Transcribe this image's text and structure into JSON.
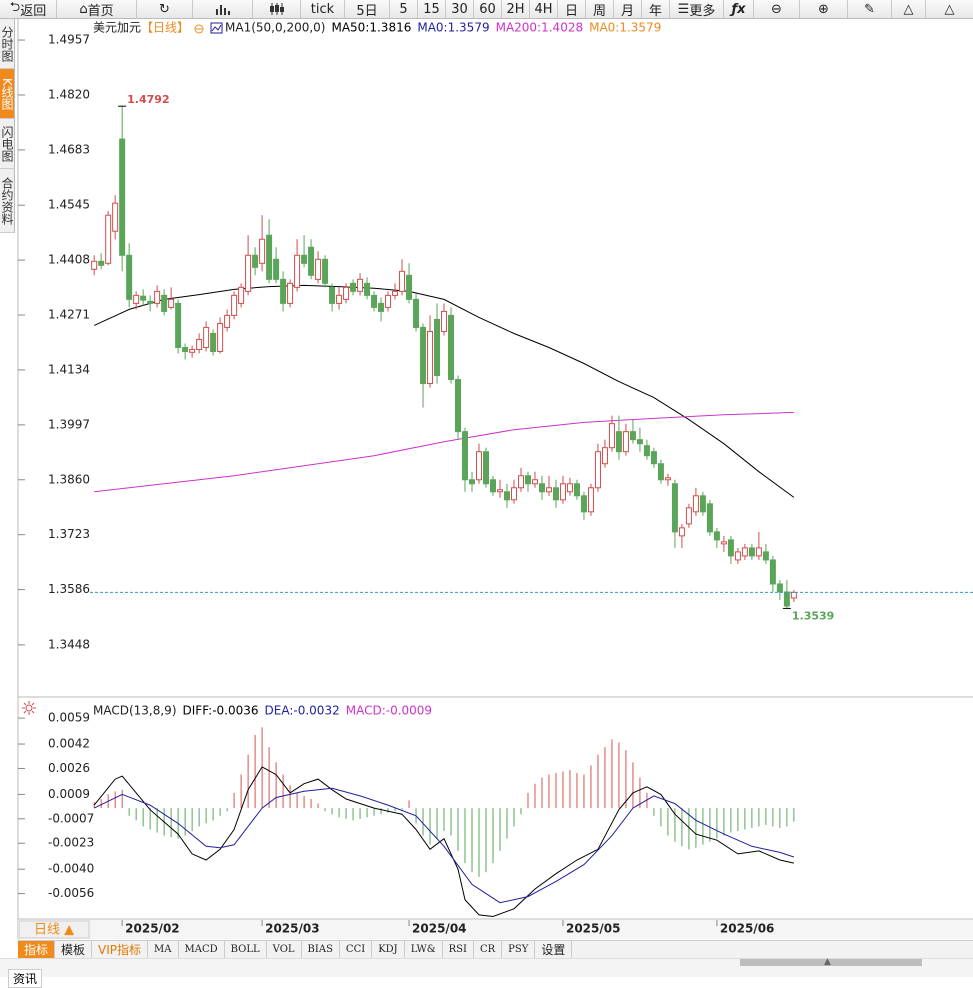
{
  "toolbar": [
    "返回",
    "首页",
    "tick",
    "5日",
    "5",
    "15",
    "30",
    "60",
    "2H",
    "4H",
    "日",
    "周",
    "月",
    "年",
    "更多"
  ],
  "side_tabs": [
    "分时图",
    "K线图",
    "闪电图",
    "合约资料"
  ],
  "period_button": "日线 ▲",
  "bottom_tabs": [
    "指标",
    "模板",
    "VIP指标",
    "MA",
    "MACD",
    "BOLL",
    "VOL",
    "BIAS",
    "CCI",
    "KDJ",
    "LW&",
    "RSI",
    "CR",
    "PSY",
    "设置"
  ],
  "footer_tab": "资讯",
  "chart_data": [
    {
      "type": "candlestick",
      "title": "美元加元",
      "period": "【日线】",
      "indicator": "MA1(50,0,200,0)",
      "legend": [
        {
          "label": "MA50:1.3816",
          "color": "#000000"
        },
        {
          "label": "MA0:1.3579",
          "color": "#1f1fa0"
        },
        {
          "label": "MA200:1.4028",
          "color": "#cc33cc"
        },
        {
          "label": "MA0:1.3579",
          "color": "#f08a1c"
        }
      ],
      "up_color": "#d24d4d",
      "down_color": "#5aa55a",
      "last_line_color": "#3399cc",
      "xlim": [
        -10.6,
        125.6
      ],
      "ylim": [
        1.3323,
        1.5012
      ],
      "yticks": [
        1.4957,
        {
          "value": 1.482,
          "label": "1.4820"
        },
        1.4683,
        1.4545,
        1.4408,
        1.4271,
        1.4134,
        1.3997,
        {
          "value": 1.386,
          "label": "1.3860"
        },
        1.3723,
        1.3586,
        1.3448
      ],
      "ohlc": [
        [
          1.4385,
          1.442,
          1.437,
          1.4405
        ],
        [
          1.4405,
          1.4425,
          1.4385,
          1.4395
        ],
        [
          1.44,
          1.453,
          1.4395,
          1.452
        ],
        [
          1.448,
          1.457,
          1.446,
          1.455
        ],
        [
          1.471,
          1.4792,
          1.438,
          1.442
        ],
        [
          1.442,
          1.445,
          1.429,
          1.431
        ],
        [
          1.43,
          1.433,
          1.4285,
          1.432
        ],
        [
          1.4318,
          1.4335,
          1.4295,
          1.4308
        ],
        [
          1.4305,
          1.432,
          1.428,
          1.43
        ],
        [
          1.43,
          1.4345,
          1.429,
          1.433
        ],
        [
          1.432,
          1.4335,
          1.427,
          1.428
        ],
        [
          1.429,
          1.434,
          1.4285,
          1.431
        ],
        [
          1.43,
          1.431,
          1.4175,
          1.419
        ],
        [
          1.419,
          1.42,
          1.416,
          1.418
        ],
        [
          1.4178,
          1.4195,
          1.4165,
          1.4185
        ],
        [
          1.4185,
          1.4225,
          1.4175,
          1.421
        ],
        [
          1.419,
          1.4255,
          1.418,
          1.424
        ],
        [
          1.4225,
          1.4235,
          1.417,
          1.418
        ],
        [
          1.418,
          1.4265,
          1.4175,
          1.425
        ],
        [
          1.424,
          1.4285,
          1.423,
          1.427
        ],
        [
          1.427,
          1.433,
          1.426,
          1.432
        ],
        [
          1.43,
          1.435,
          1.429,
          1.434
        ],
        [
          1.433,
          1.447,
          1.432,
          1.442
        ],
        [
          1.442,
          1.444,
          1.437,
          1.439
        ],
        [
          1.44,
          1.452,
          1.438,
          1.446
        ],
        [
          1.447,
          1.451,
          1.435,
          1.436
        ],
        [
          1.441,
          1.444,
          1.435,
          1.436
        ],
        [
          1.436,
          1.438,
          1.428,
          1.43
        ],
        [
          1.43,
          1.436,
          1.429,
          1.435
        ],
        [
          1.434,
          1.446,
          1.433,
          1.442
        ],
        [
          1.442,
          1.447,
          1.439,
          1.44
        ],
        [
          1.444,
          1.446,
          1.436,
          1.437
        ],
        [
          1.436,
          1.443,
          1.435,
          1.441
        ],
        [
          1.441,
          1.442,
          1.434,
          1.435
        ],
        [
          1.434,
          1.435,
          1.428,
          1.43
        ],
        [
          1.43,
          1.434,
          1.4285,
          1.432
        ],
        [
          1.431,
          1.435,
          1.43,
          1.434
        ],
        [
          1.435,
          1.436,
          1.432,
          1.433
        ],
        [
          1.433,
          1.4375,
          1.432,
          1.436
        ],
        [
          1.435,
          1.4365,
          1.431,
          1.432
        ],
        [
          1.432,
          1.433,
          1.428,
          1.429
        ],
        [
          1.43,
          1.4315,
          1.4255,
          1.428
        ],
        [
          1.429,
          1.433,
          1.428,
          1.432
        ],
        [
          1.432,
          1.435,
          1.431,
          1.433
        ],
        [
          1.433,
          1.441,
          1.432,
          1.438
        ],
        [
          1.437,
          1.44,
          1.43,
          1.431
        ],
        [
          1.431,
          1.4325,
          1.423,
          1.424
        ],
        [
          1.424,
          1.425,
          1.404,
          1.41
        ],
        [
          1.41,
          1.427,
          1.409,
          1.423
        ],
        [
          1.426,
          1.43,
          1.41,
          1.412
        ],
        [
          1.423,
          1.43,
          1.422,
          1.428
        ],
        [
          1.427,
          1.429,
          1.41,
          1.411
        ],
        [
          1.411,
          1.412,
          1.396,
          1.398
        ],
        [
          1.398,
          1.399,
          1.383,
          1.386
        ],
        [
          1.386,
          1.388,
          1.383,
          1.385
        ],
        [
          1.386,
          1.395,
          1.385,
          1.393
        ],
        [
          1.393,
          1.394,
          1.384,
          1.385
        ],
        [
          1.386,
          1.387,
          1.382,
          1.383
        ],
        [
          1.383,
          1.386,
          1.3815,
          1.3835
        ],
        [
          1.383,
          1.385,
          1.379,
          1.381
        ],
        [
          1.381,
          1.386,
          1.38,
          1.384
        ],
        [
          1.384,
          1.389,
          1.383,
          1.387
        ],
        [
          1.387,
          1.388,
          1.383,
          1.385
        ],
        [
          1.385,
          1.388,
          1.384,
          1.386
        ],
        [
          1.385,
          1.387,
          1.381,
          1.383
        ],
        [
          1.383,
          1.387,
          1.382,
          1.384
        ],
        [
          1.384,
          1.386,
          1.379,
          1.381
        ],
        [
          1.381,
          1.387,
          1.38,
          1.385
        ],
        [
          1.383,
          1.3865,
          1.382,
          1.385
        ],
        [
          1.385,
          1.386,
          1.381,
          1.382
        ],
        [
          1.382,
          1.383,
          1.376,
          1.378
        ],
        [
          1.378,
          1.385,
          1.377,
          1.384
        ],
        [
          1.384,
          1.395,
          1.383,
          1.393
        ],
        [
          1.39,
          1.396,
          1.389,
          1.394
        ],
        [
          1.394,
          1.402,
          1.393,
          1.4
        ],
        [
          1.398,
          1.402,
          1.391,
          1.393
        ],
        [
          1.393,
          1.4,
          1.392,
          1.398
        ],
        [
          1.398,
          1.401,
          1.395,
          1.396
        ],
        [
          1.396,
          1.399,
          1.393,
          1.395
        ],
        [
          1.3945,
          1.396,
          1.391,
          1.392
        ],
        [
          1.393,
          1.394,
          1.389,
          1.39
        ],
        [
          1.39,
          1.391,
          1.385,
          1.386
        ],
        [
          1.386,
          1.3875,
          1.3845,
          1.3865
        ],
        [
          1.385,
          1.386,
          1.369,
          1.373
        ],
        [
          1.372,
          1.375,
          1.369,
          1.374
        ],
        [
          1.375,
          1.38,
          1.374,
          1.379
        ],
        [
          1.378,
          1.384,
          1.377,
          1.382
        ],
        [
          1.382,
          1.383,
          1.377,
          1.378
        ],
        [
          1.38,
          1.381,
          1.372,
          1.373
        ],
        [
          1.373,
          1.374,
          1.369,
          1.371
        ],
        [
          1.37,
          1.372,
          1.368,
          1.3705
        ],
        [
          1.371,
          1.372,
          1.365,
          1.367
        ],
        [
          1.366,
          1.369,
          1.365,
          1.368
        ],
        [
          1.367,
          1.37,
          1.366,
          1.369
        ],
        [
          1.369,
          1.37,
          1.366,
          1.367
        ],
        [
          1.367,
          1.373,
          1.366,
          1.369
        ],
        [
          1.368,
          1.37,
          1.365,
          1.366
        ],
        [
          1.366,
          1.367,
          1.358,
          1.36
        ],
        [
          1.36,
          1.361,
          1.356,
          1.358
        ],
        [
          1.358,
          1.361,
          1.3539,
          1.3545
        ],
        [
          1.3565,
          1.3585,
          1.3555,
          1.3579
        ]
      ],
      "series": [
        {
          "color": "#000000",
          "x": [
            0,
            5,
            10,
            15,
            20,
            25,
            30,
            35,
            40,
            45,
            50,
            55,
            60,
            65,
            70,
            75,
            80,
            85,
            90,
            95,
            100
          ],
          "values": [
            1.4245,
            1.4285,
            1.431,
            1.4322,
            1.4335,
            1.4342,
            1.4345,
            1.4342,
            1.4338,
            1.433,
            1.431,
            1.4265,
            1.4225,
            1.419,
            1.415,
            1.4105,
            1.4065,
            1.401,
            1.395,
            1.388,
            1.3816
          ]
        },
        {
          "color": "#cc33cc",
          "x": [
            0,
            10,
            20,
            30,
            40,
            50,
            60,
            70,
            80,
            90,
            100
          ],
          "values": [
            1.383,
            1.385,
            1.387,
            1.3895,
            1.392,
            1.3955,
            1.3985,
            1.4003,
            1.4013,
            1.4022,
            1.4028
          ]
        }
      ]
    },
    {
      "type": "macd",
      "title": "MACD(13,8,9)",
      "legend": [
        {
          "label": "DIFF:-0.0036",
          "color": "#000000"
        },
        {
          "label": "DEA:-0.0032",
          "color": "#1f1fa0"
        },
        {
          "label": "MACD:-0.0009",
          "color": "#cc33cc"
        }
      ],
      "xlim": [
        -10.6,
        125.6
      ],
      "ylim": [
        -0.0072,
        0.0063
      ],
      "yticks": [
        0.0059,
        0.0042,
        0.0026,
        0.0009,
        -0.0007,
        -0.0023,
        {
          "value": -0.004,
          "label": "-0.0040"
        },
        -0.0056
      ],
      "xticks": [
        {
          "value": 4,
          "label": "2025/02"
        },
        {
          "value": 24,
          "label": "2025/03"
        },
        {
          "value": 45,
          "label": "2025/04"
        },
        {
          "value": 67,
          "label": "2025/05"
        },
        {
          "value": 89,
          "label": "2025/06"
        }
      ],
      "up_color": "#d9534f",
      "down_color": "#5aa55a",
      "bars": [
        0.0004,
        0.0006,
        0.0009,
        0.0011,
        0.0012,
        -0.0005,
        -0.0008,
        -0.0012,
        -0.0014,
        -0.0016,
        -0.0018,
        -0.0019,
        -0.002,
        -0.0018,
        -0.0015,
        -0.0012,
        -0.001,
        -0.0008,
        -0.0005,
        -0.0002,
        0.001,
        0.0022,
        0.0035,
        0.0048,
        0.0053,
        0.004,
        0.003,
        0.0022,
        0.0015,
        0.001,
        0.0008,
        0.0006,
        0.0003,
        -0.0002,
        -0.0004,
        -0.0006,
        -0.0007,
        -0.0008,
        -0.0007,
        -0.0006,
        -0.0005,
        -0.0004,
        -0.0003,
        -0.0002,
        -0.0001,
        0.0005,
        -0.001,
        -0.0018,
        -0.0024,
        -0.002,
        -0.0015,
        -0.0018,
        -0.0028,
        -0.0036,
        -0.0042,
        -0.0045,
        -0.0042,
        -0.0036,
        -0.0028,
        -0.002,
        -0.0012,
        -0.0004,
        0.001,
        0.0016,
        0.002,
        0.0022,
        0.0023,
        0.0024,
        0.0025,
        0.0023,
        0.0022,
        0.0028,
        0.0035,
        0.004,
        0.0045,
        0.0043,
        0.0038,
        0.003,
        0.002,
        0.001,
        -0.0005,
        -0.0012,
        -0.0018,
        -0.0022,
        -0.0025,
        -0.0027,
        -0.0026,
        -0.0024,
        -0.0022,
        -0.002,
        -0.0018,
        -0.0016,
        -0.0015,
        -0.0014,
        -0.0013,
        -0.0012,
        -0.0011,
        -0.0012,
        -0.0013,
        -0.0012,
        -0.0009
      ],
      "series": [
        {
          "color": "#000000",
          "x": [
            0,
            3,
            4,
            8,
            12,
            14,
            16,
            18,
            20,
            22,
            24,
            26,
            28,
            30,
            32,
            34,
            36,
            40,
            44,
            46,
            48,
            50,
            52,
            53,
            55,
            57,
            60,
            63,
            66,
            69,
            72,
            75,
            77,
            79,
            81,
            83,
            86,
            89,
            92,
            95,
            98,
            100
          ],
          "values": [
            0.0002,
            0.0019,
            0.0021,
            -0.0001,
            -0.0017,
            -0.003,
            -0.0034,
            -0.0027,
            -0.0014,
            0.0012,
            0.0027,
            0.0022,
            0.001,
            0.0016,
            0.0019,
            0.0012,
            0.0006,
            0,
            -0.0004,
            -0.0014,
            -0.0027,
            -0.002,
            -0.004,
            -0.006,
            -0.007,
            -0.0071,
            -0.0066,
            -0.0053,
            -0.0043,
            -0.0034,
            -0.0027,
            -0.0001,
            0.001,
            0.0014,
            0.0009,
            -0.0004,
            -0.0017,
            -0.0021,
            -0.003,
            -0.0028,
            -0.0034,
            -0.0036
          ]
        },
        {
          "color": "#1f1fa0",
          "x": [
            0,
            4,
            8,
            12,
            16,
            18,
            20,
            22,
            24,
            26,
            30,
            34,
            38,
            42,
            46,
            50,
            54,
            58,
            62,
            66,
            70,
            74,
            77,
            80,
            83,
            86,
            90,
            94,
            98,
            100
          ],
          "values": [
            0,
            0.0009,
            0.0002,
            -0.001,
            -0.0025,
            -0.0026,
            -0.0024,
            -0.0012,
            0,
            0.0007,
            0.0011,
            0.0013,
            0.0008,
            0.0002,
            -0.0005,
            -0.0025,
            -0.005,
            -0.0062,
            -0.0058,
            -0.0048,
            -0.0037,
            -0.0018,
            0,
            0.0008,
            0.0003,
            -0.0008,
            -0.0017,
            -0.0025,
            -0.0029,
            -0.0032
          ]
        }
      ]
    }
  ]
}
